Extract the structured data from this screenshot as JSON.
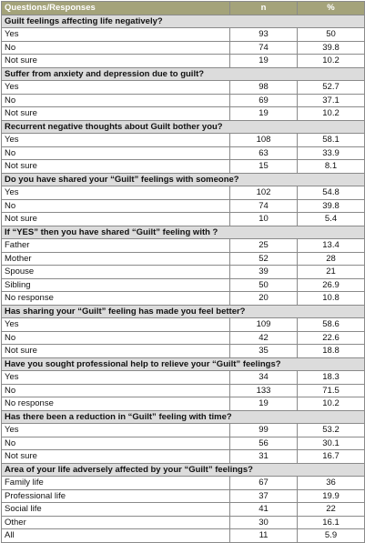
{
  "table": {
    "header": [
      "Questions/Responses",
      "n",
      "%"
    ],
    "sections": [
      {
        "title": "Guilt feelings affecting life negatively?",
        "rows": [
          [
            "Yes",
            93,
            50
          ],
          [
            "No",
            74,
            39.8
          ],
          [
            "Not sure",
            19,
            10.2
          ]
        ]
      },
      {
        "title": "Suffer from anxiety and depression due to guilt?",
        "rows": [
          [
            "Yes",
            98,
            52.7
          ],
          [
            "No",
            69,
            37.1
          ],
          [
            "Not sure",
            19,
            10.2
          ]
        ]
      },
      {
        "title": "Recurrent negative thoughts about Guilt bother you?",
        "rows": [
          [
            "Yes",
            108,
            58.1
          ],
          [
            "No",
            63,
            33.9
          ],
          [
            "Not sure",
            15,
            8.1
          ]
        ]
      },
      {
        "title": "Do you have shared your “Guilt” feelings with someone?",
        "rows": [
          [
            "Yes",
            102,
            54.8
          ],
          [
            "No",
            74,
            39.8
          ],
          [
            "Not sure",
            10,
            5.4
          ]
        ]
      },
      {
        "title": "If “YES” then you have shared “Guilt” feeling with ?",
        "rows": [
          [
            "Father",
            25,
            13.4
          ],
          [
            "Mother",
            52,
            28
          ],
          [
            "Spouse",
            39,
            21
          ],
          [
            "Sibling",
            50,
            26.9
          ],
          [
            "No response",
            20,
            10.8
          ]
        ]
      },
      {
        "title": "Has sharing your “Guilt” feeling has made you feel better?",
        "rows": [
          [
            "Yes",
            109,
            58.6
          ],
          [
            "No",
            42,
            22.6
          ],
          [
            "Not sure",
            35,
            18.8
          ]
        ]
      },
      {
        "title": "Have you sought professional help to relieve your “Guilt” feelings?",
        "rows": [
          [
            "Yes",
            34,
            18.3
          ],
          [
            "No",
            133,
            71.5
          ],
          [
            "No response",
            19,
            10.2
          ]
        ]
      },
      {
        "title": "Has there been a reduction in “Guilt” feeling with time?",
        "rows": [
          [
            "Yes",
            99,
            53.2
          ],
          [
            "No",
            56,
            30.1
          ],
          [
            "Not sure",
            31,
            16.7
          ]
        ]
      },
      {
        "title": "Area of your life adversely affected by your “Guilt” feelings?",
        "rows": [
          [
            "Family life",
            67,
            36
          ],
          [
            "Professional life",
            37,
            19.9
          ],
          [
            "Social life",
            41,
            22
          ],
          [
            "Other",
            30,
            16.1
          ],
          [
            "All",
            11,
            5.9
          ]
        ]
      }
    ]
  }
}
